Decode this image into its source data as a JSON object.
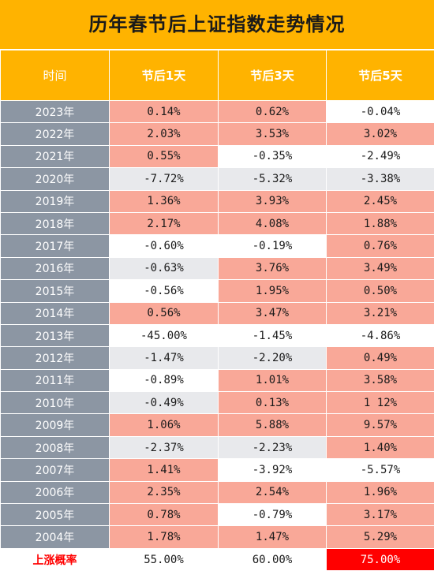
{
  "title": "历年春节后上证指数走势情况",
  "headers": [
    "时间",
    "节后1天",
    "节后3天",
    "节后5天"
  ],
  "rows": [
    {
      "year": "2023年",
      "d1": "0.14%",
      "d3": "0.62%",
      "d5": "-0.04%",
      "s": [
        "pos",
        "pos",
        "neg"
      ]
    },
    {
      "year": "2022年",
      "d1": "2.03%",
      "d3": "3.53%",
      "d5": "3.02%",
      "s": [
        "pos",
        "pos",
        "pos"
      ]
    },
    {
      "year": "2021年",
      "d1": "0.55%",
      "d3": "-0.35%",
      "d5": "-2.49%",
      "s": [
        "pos",
        "neg",
        "neg"
      ]
    },
    {
      "year": "2020年",
      "d1": "-7.72%",
      "d3": "-5.32%",
      "d5": "-3.38%",
      "s": [
        "negg",
        "negg",
        "negg"
      ]
    },
    {
      "year": "2019年",
      "d1": "1.36%",
      "d3": "3.93%",
      "d5": "2.45%",
      "s": [
        "pos",
        "pos",
        "pos"
      ]
    },
    {
      "year": "2018年",
      "d1": "2.17%",
      "d3": "4.08%",
      "d5": "1.88%",
      "s": [
        "pos",
        "pos",
        "pos"
      ]
    },
    {
      "year": "2017年",
      "d1": "-0.60%",
      "d3": "-0.19%",
      "d5": "0.76%",
      "s": [
        "neg",
        "neg",
        "pos"
      ]
    },
    {
      "year": "2016年",
      "d1": "-0.63%",
      "d3": "3.76%",
      "d5": "3.49%",
      "s": [
        "negg",
        "pos",
        "pos"
      ]
    },
    {
      "year": "2015年",
      "d1": "-0.56%",
      "d3": "1.95%",
      "d5": "0.50%",
      "s": [
        "neg",
        "pos",
        "pos"
      ]
    },
    {
      "year": "2014年",
      "d1": "0.56%",
      "d3": "3.47%",
      "d5": "3.21%",
      "s": [
        "pos",
        "pos",
        "pos"
      ]
    },
    {
      "year": "2013年",
      "d1": "-45.00%",
      "d3": "-1.45%",
      "d5": "-4.86%",
      "s": [
        "neg",
        "neg",
        "neg"
      ]
    },
    {
      "year": "2012年",
      "d1": "-1.47%",
      "d3": "-2.20%",
      "d5": "0.49%",
      "s": [
        "negg",
        "negg",
        "pos"
      ]
    },
    {
      "year": "2011年",
      "d1": "-0.89%",
      "d3": "1.01%",
      "d5": "3.58%",
      "s": [
        "neg",
        "pos",
        "pos"
      ]
    },
    {
      "year": "2010年",
      "d1": "-0.49%",
      "d3": "0.13%",
      "d5": "1 12%",
      "s": [
        "negg",
        "pos",
        "pos"
      ]
    },
    {
      "year": "2009年",
      "d1": "1.06%",
      "d3": "5.88%",
      "d5": "9.57%",
      "s": [
        "pos",
        "pos",
        "pos"
      ]
    },
    {
      "year": "2008年",
      "d1": "-2.37%",
      "d3": "-2.23%",
      "d5": "1.40%",
      "s": [
        "negg",
        "negg",
        "pos"
      ]
    },
    {
      "year": "2007年",
      "d1": "1.41%",
      "d3": "-3.92%",
      "d5": "-5.57%",
      "s": [
        "pos",
        "neg",
        "neg"
      ]
    },
    {
      "year": "2006年",
      "d1": "2.35%",
      "d3": "2.54%",
      "d5": "1.96%",
      "s": [
        "pos",
        "pos",
        "pos"
      ]
    },
    {
      "year": "2005年",
      "d1": "0.78%",
      "d3": "-0.79%",
      "d5": "3.17%",
      "s": [
        "pos",
        "neg",
        "pos"
      ]
    },
    {
      "year": "2004年",
      "d1": "1.78%",
      "d3": "1.47%",
      "d5": "5.29%",
      "s": [
        "pos",
        "pos",
        "pos"
      ]
    }
  ],
  "summary": {
    "label": "上涨概率",
    "d1": "55.00%",
    "d3": "60.00%",
    "d5": "75.00%"
  },
  "colors": {
    "header": "#ffb300",
    "up_cell": "#f9a898",
    "year_col": "#8c96a3",
    "highlight": "#ff0000"
  }
}
